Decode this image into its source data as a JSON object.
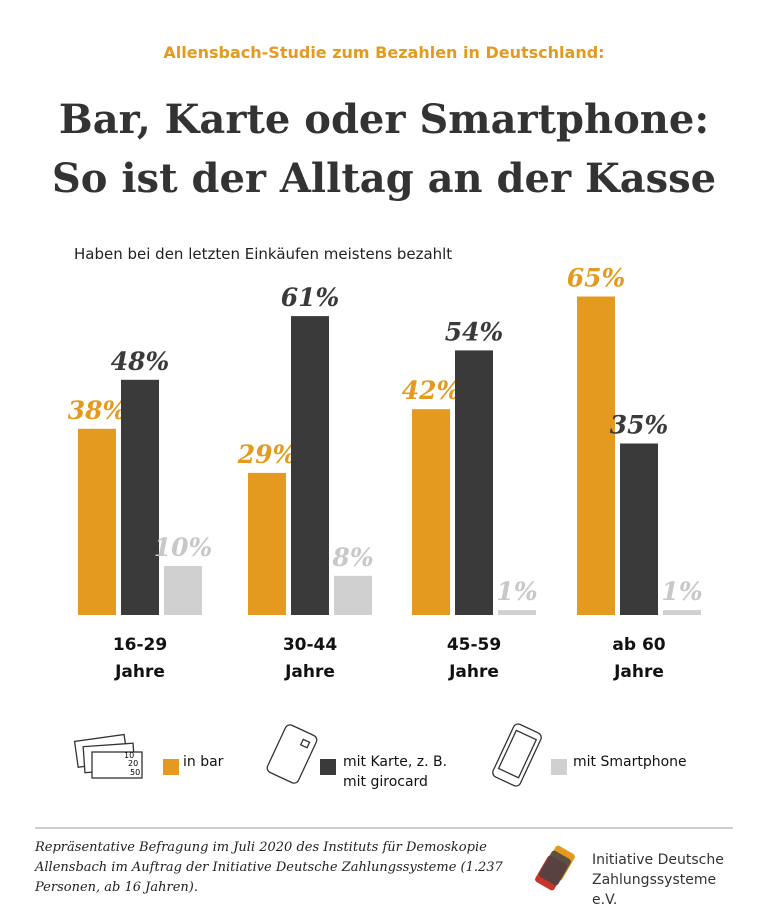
{
  "chart_data": {
    "type": "bar",
    "kicker": "Allensbach-Studie zum Bezahlen in Deutschland:",
    "title": [
      "Bar, Karte oder Smartphone:",
      "So ist der Alltag an der Kasse"
    ],
    "subtitle": "Haben bei den letzten Einkäufen meistens bezahlt",
    "categories": [
      "16-29 Jahre",
      "30-44 Jahre",
      "45-59 Jahre",
      "ab 60 Jahre"
    ],
    "series": [
      {
        "name": "in bar",
        "color": "#e39a1f",
        "label_color": "#e39a1f",
        "values": [
          38,
          29,
          42,
          65
        ],
        "value_labels": [
          "38%",
          "29%",
          "42%",
          "65%"
        ]
      },
      {
        "name": "mit Karte, z. B. mit girocard",
        "color": "#3a3a3a",
        "label_color": "#3a3a3a",
        "values": [
          48,
          61,
          54,
          35
        ],
        "value_labels": [
          "48%",
          "61%",
          "54%",
          "35%"
        ]
      },
      {
        "name": "mit Smartphone",
        "color": "#d0d0d0",
        "label_color": "#c8c8c8",
        "values": [
          10,
          8,
          1,
          1
        ],
        "value_labels": [
          "10%",
          "8%",
          "1%",
          "1%"
        ]
      }
    ],
    "banknote_labels": [
      "10",
      "20",
      "50"
    ],
    "note": "Repräsentative Befragung im Juli 2020 des Instituts für Demoskopie Allensbach im Auftrag der Initiative Deutsche Zahlungssysteme (1.237 Personen, ab 16 Jahren).",
    "source": "Initiative Deutsche Zahlungssysteme e.V."
  }
}
